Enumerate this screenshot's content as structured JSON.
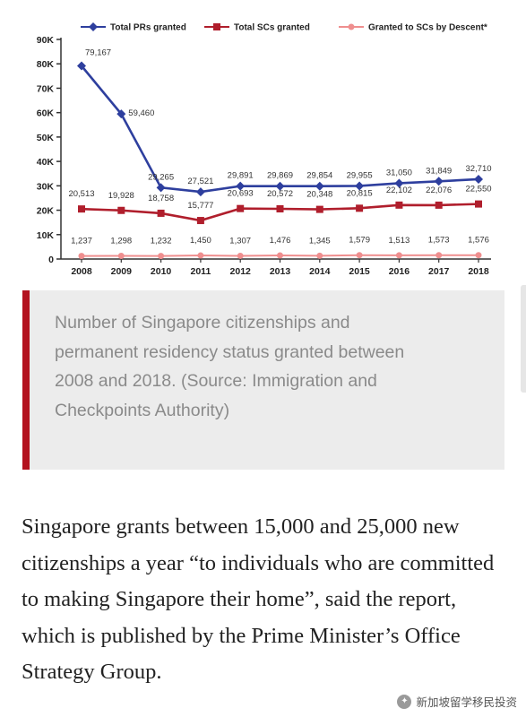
{
  "chart_data": {
    "type": "line",
    "categories": [
      "2008",
      "2009",
      "2010",
      "2011",
      "2012",
      "2013",
      "2014",
      "2015",
      "2016",
      "2017",
      "2018"
    ],
    "y_ticks": [
      "0",
      "10K",
      "20K",
      "30K",
      "40K",
      "50K",
      "60K",
      "70K",
      "80K",
      "90K"
    ],
    "ylim": [
      0,
      90000
    ],
    "grid": false,
    "legend_position": "top",
    "series": [
      {
        "name": "Total PRs granted",
        "color": "#2e3f9e",
        "marker": "diamond",
        "values": [
          79167,
          59460,
          29265,
          27521,
          29891,
          29869,
          29854,
          29955,
          31050,
          31849,
          32710
        ],
        "labels": [
          "79,167",
          "59,460",
          "29,265",
          "27,521",
          "29,891",
          "29,869",
          "29,854",
          "29,955",
          "31,050",
          "31,849",
          "32,710"
        ]
      },
      {
        "name": "Total SCs granted",
        "color": "#b01e2c",
        "marker": "square",
        "values": [
          20513,
          19928,
          18758,
          15777,
          20693,
          20572,
          20348,
          20815,
          22102,
          22076,
          22550
        ],
        "labels": [
          "20,513",
          "19,928",
          "18,758",
          "15,777",
          "20,693",
          "20,572",
          "20,348",
          "20,815",
          "22,102",
          "22,076",
          "22,550"
        ]
      },
      {
        "name": "Granted to SCs by Descent*",
        "color": "#ef8f8f",
        "marker": "circle",
        "values": [
          1237,
          1298,
          1232,
          1450,
          1307,
          1476,
          1345,
          1579,
          1513,
          1573,
          1576
        ],
        "labels": [
          "1,237",
          "1,298",
          "1,232",
          "1,450",
          "1,307",
          "1,476",
          "1,345",
          "1,579",
          "1,513",
          "1,573",
          "1,576"
        ]
      }
    ]
  },
  "caption": "Number of Singapore citizenships and permanent residency status granted between 2008 and 2018. (Source: Immigration and Checkpoints Authority)",
  "body_text": "Singapore grants between 15,000 and 25,000 new citizenships a year “to individuals who are committed to making Singapore their home”, said the report, which is published by the Prime Minister’s Office Strategy Group.",
  "watermark": "新加坡留学移民投资",
  "colors": {
    "caption_bar": "#b3121f",
    "caption_bg": "#ececec",
    "axis": "#333333"
  }
}
